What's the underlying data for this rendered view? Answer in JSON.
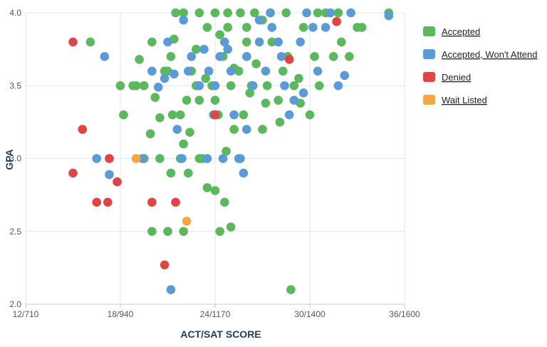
{
  "chart_data": {
    "type": "scatter",
    "xlabel": "ACT/SAT SCORE",
    "ylabel": "GPA",
    "xlim": [
      12,
      36
    ],
    "ylim": [
      2.0,
      4.0
    ],
    "x_ticks": [
      {
        "value": 12,
        "label": "12/710"
      },
      {
        "value": 18,
        "label": "18/940"
      },
      {
        "value": 24,
        "label": "24/1170"
      },
      {
        "value": 30,
        "label": "30/1400"
      },
      {
        "value": 36,
        "label": "36/1600"
      }
    ],
    "y_ticks": [
      {
        "value": 2.0,
        "label": "2.0"
      },
      {
        "value": 2.5,
        "label": "2.5"
      },
      {
        "value": 3.0,
        "label": "3.0"
      },
      {
        "value": 3.5,
        "label": "3.5"
      },
      {
        "value": 4.0,
        "label": "4.0"
      }
    ],
    "grid": true,
    "legend_position": "right",
    "series": [
      {
        "name": "Accepted",
        "color": "#5cb85c",
        "points": [
          [
            16.1,
            3.8
          ],
          [
            18.0,
            3.5
          ],
          [
            18.2,
            3.3
          ],
          [
            19.0,
            3.5
          ],
          [
            19.2,
            3.68
          ],
          [
            19.5,
            3.5
          ],
          [
            19.9,
            3.17
          ],
          [
            20.0,
            3.8
          ],
          [
            20.5,
            3.28
          ],
          [
            21.0,
            3.6
          ],
          [
            21.3,
            3.3
          ],
          [
            21.4,
            3.82
          ],
          [
            21.8,
            3.3
          ],
          [
            22.0,
            3.1
          ],
          [
            22.2,
            3.4
          ],
          [
            22.5,
            3.6
          ],
          [
            22.8,
            3.5
          ],
          [
            23.0,
            3.4
          ],
          [
            23.2,
            3.0
          ],
          [
            23.5,
            3.9
          ],
          [
            23.8,
            3.5
          ],
          [
            24.0,
            3.4
          ],
          [
            24.2,
            3.3
          ],
          [
            24.5,
            3.7
          ],
          [
            24.8,
            3.9
          ],
          [
            25.0,
            3.5
          ],
          [
            25.2,
            3.2
          ],
          [
            25.5,
            3.6
          ],
          [
            25.8,
            3.3
          ],
          [
            26.0,
            3.8
          ],
          [
            26.3,
            3.5
          ],
          [
            26.6,
            3.65
          ],
          [
            27.0,
            3.2
          ],
          [
            27.3,
            3.5
          ],
          [
            27.6,
            3.8
          ],
          [
            28.0,
            3.4
          ],
          [
            28.3,
            3.6
          ],
          [
            28.6,
            3.7
          ],
          [
            29.0,
            3.5
          ],
          [
            29.3,
            3.55
          ],
          [
            29.6,
            3.9
          ],
          [
            30.0,
            3.3
          ],
          [
            30.3,
            3.7
          ],
          [
            30.6,
            3.5
          ],
          [
            31.0,
            4.0
          ],
          [
            31.5,
            3.7
          ],
          [
            32.0,
            3.8
          ],
          [
            32.5,
            3.7
          ],
          [
            33.0,
            3.9
          ],
          [
            33.3,
            3.9
          ],
          [
            35.0,
            4.0
          ],
          [
            20.0,
            2.5
          ],
          [
            21.0,
            2.5
          ],
          [
            22.0,
            2.5
          ],
          [
            23.5,
            2.8
          ],
          [
            24.0,
            2.78
          ],
          [
            24.3,
            2.5
          ],
          [
            24.6,
            2.7
          ],
          [
            25.0,
            2.53
          ],
          [
            21.2,
            2.9
          ],
          [
            22.3,
            2.9
          ],
          [
            23.0,
            3.0
          ],
          [
            19.5,
            3.0
          ],
          [
            20.5,
            3.0
          ],
          [
            21.8,
            3.0
          ],
          [
            28.8,
            2.1
          ],
          [
            20.8,
            3.6
          ],
          [
            21.5,
            4.0
          ],
          [
            22.0,
            4.0
          ],
          [
            23.0,
            4.0
          ],
          [
            24.0,
            4.0
          ],
          [
            24.8,
            4.0
          ],
          [
            25.6,
            4.0
          ],
          [
            26.5,
            4.0
          ],
          [
            27.5,
            4.0
          ],
          [
            28.5,
            4.0
          ],
          [
            30.5,
            4.0
          ],
          [
            31.8,
            4.0
          ],
          [
            26.0,
            3.9
          ],
          [
            27.0,
            3.95
          ],
          [
            21.2,
            3.7
          ],
          [
            22.8,
            3.75
          ],
          [
            24.3,
            3.85
          ],
          [
            25.2,
            3.62
          ],
          [
            26.2,
            3.45
          ],
          [
            27.2,
            3.38
          ],
          [
            28.1,
            3.25
          ],
          [
            29.4,
            3.38
          ],
          [
            18.8,
            3.5
          ],
          [
            20.2,
            3.42
          ],
          [
            23.4,
            3.55
          ],
          [
            22.4,
            3.18
          ],
          [
            24.7,
            3.05
          ]
        ]
      },
      {
        "name": "Accepted, Won't Attend",
        "color": "#5b9bd5",
        "points": [
          [
            17.0,
            3.7
          ],
          [
            16.5,
            3.0
          ],
          [
            17.3,
            2.89
          ],
          [
            19.4,
            3.0
          ],
          [
            20.0,
            3.6
          ],
          [
            20.4,
            3.49
          ],
          [
            20.8,
            3.55
          ],
          [
            21.0,
            3.8
          ],
          [
            21.6,
            3.2
          ],
          [
            21.9,
            3.0
          ],
          [
            22.3,
            3.6
          ],
          [
            22.5,
            3.7
          ],
          [
            23.0,
            3.5
          ],
          [
            23.3,
            3.75
          ],
          [
            23.6,
            3.6
          ],
          [
            24.0,
            3.5
          ],
          [
            24.3,
            3.7
          ],
          [
            24.6,
            3.8
          ],
          [
            25.0,
            3.6
          ],
          [
            25.2,
            3.3
          ],
          [
            25.6,
            3.0
          ],
          [
            25.8,
            2.9
          ],
          [
            26.0,
            3.7
          ],
          [
            26.4,
            3.5
          ],
          [
            26.8,
            3.8
          ],
          [
            27.2,
            3.6
          ],
          [
            27.6,
            3.9
          ],
          [
            28.0,
            3.8
          ],
          [
            28.4,
            3.5
          ],
          [
            28.7,
            3.3
          ],
          [
            29.0,
            3.4
          ],
          [
            29.4,
            3.8
          ],
          [
            29.8,
            4.0
          ],
          [
            30.2,
            3.9
          ],
          [
            30.5,
            3.6
          ],
          [
            31.0,
            3.9
          ],
          [
            31.3,
            4.0
          ],
          [
            31.8,
            3.5
          ],
          [
            32.2,
            3.57
          ],
          [
            32.6,
            4.0
          ],
          [
            35.0,
            3.98
          ],
          [
            21.2,
            2.1
          ],
          [
            23.5,
            3.0
          ],
          [
            24.5,
            3.0
          ],
          [
            25.5,
            3.0
          ],
          [
            22.0,
            3.95
          ],
          [
            24.8,
            3.75
          ],
          [
            26.8,
            3.95
          ],
          [
            27.5,
            4.0
          ],
          [
            28.2,
            3.7
          ],
          [
            21.4,
            3.58
          ],
          [
            23.9,
            3.3
          ],
          [
            26.0,
            3.2
          ],
          [
            29.6,
            3.45
          ]
        ]
      },
      {
        "name": "Denied",
        "color": "#e04545",
        "points": [
          [
            15.0,
            3.8
          ],
          [
            15.6,
            3.2
          ],
          [
            15.0,
            2.9
          ],
          [
            16.5,
            2.7
          ],
          [
            17.2,
            2.7
          ],
          [
            17.3,
            3.0
          ],
          [
            17.8,
            2.84
          ],
          [
            20.0,
            2.7
          ],
          [
            20.8,
            2.27
          ],
          [
            21.5,
            2.7
          ],
          [
            24.0,
            3.3
          ],
          [
            28.7,
            3.68
          ],
          [
            31.7,
            3.94
          ]
        ]
      },
      {
        "name": "Wait Listed",
        "color": "#f5a742",
        "points": [
          [
            19.0,
            3.0
          ],
          [
            22.2,
            2.57
          ]
        ]
      }
    ]
  }
}
